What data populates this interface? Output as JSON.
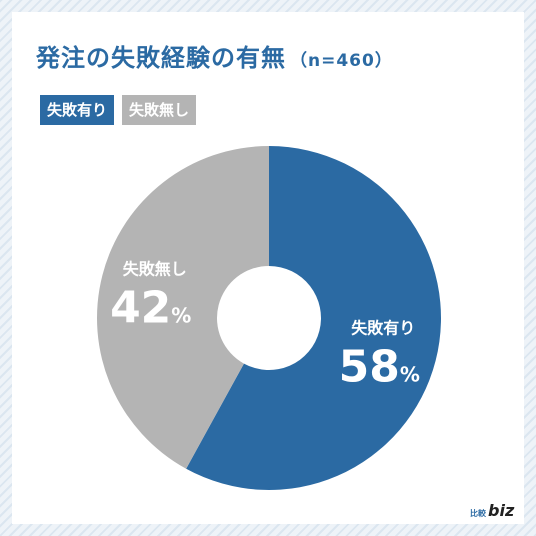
{
  "title": "発注の失敗経験の有無",
  "subtitle": "（n=460）",
  "colors": {
    "primary": "#2b6aa3",
    "secondary": "#b4b4b4",
    "title": "#2b6aa3"
  },
  "chart_data": {
    "type": "pie",
    "style": "donut",
    "title": "発注の失敗経験の有無（n=460）",
    "n": 460,
    "categories": [
      "失敗有り",
      "失敗無し"
    ],
    "values": [
      58,
      42
    ],
    "unit": "%",
    "colors": [
      "#2b6aa3",
      "#b4b4b4"
    ],
    "legend_position": "top-left"
  },
  "legend": [
    {
      "label": "失敗有り",
      "color": "#2b6aa3"
    },
    {
      "label": "失敗無し",
      "color": "#b4b4b4"
    }
  ],
  "brand": {
    "jp": "比較",
    "biz": "biz"
  }
}
